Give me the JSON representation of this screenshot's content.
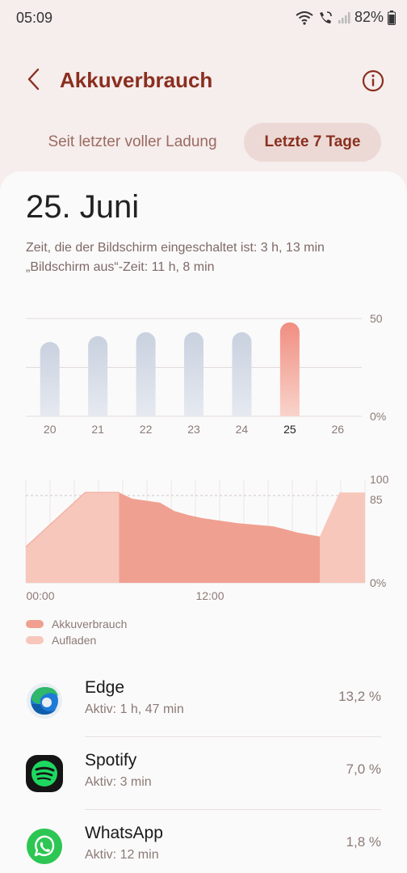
{
  "status_bar": {
    "time": "05:09",
    "battery_percent": "82%"
  },
  "header": {
    "title": "Akkuverbrauch"
  },
  "tabs": [
    {
      "label": "Seit letzter voller Ladung",
      "selected": false
    },
    {
      "label": "Letzte 7 Tage",
      "selected": true
    }
  ],
  "summary": {
    "date": "25. Juni",
    "screen_on": "Zeit, die der Bildschirm eingeschaltet ist: 3 h, 13 min",
    "screen_off": "„Bildschirm aus“-Zeit: 11 h, 8 min"
  },
  "chart_data": [
    {
      "type": "bar",
      "categories": [
        "20",
        "21",
        "22",
        "23",
        "24",
        "25",
        "26"
      ],
      "values": [
        38,
        41,
        43,
        43,
        43,
        48,
        0
      ],
      "selected_category": "25",
      "ylim": [
        0,
        50
      ],
      "y_ticks": [
        "50",
        "0%"
      ],
      "colors": {
        "default": "#c9d1df",
        "selected": "#f08e80"
      }
    },
    {
      "type": "area",
      "x_ticks": [
        "00:00",
        "12:00"
      ],
      "y_ticks": [
        "100",
        "85",
        "0%"
      ],
      "ylim": [
        0,
        100
      ],
      "reference_line": 85,
      "x_range_hours": [
        0,
        24
      ],
      "series": [
        {
          "name": "Aufladen",
          "color": "#f7c7bc",
          "points": [
            [
              0,
              35
            ],
            [
              4.2,
              88
            ],
            [
              6.6,
              88
            ],
            [
              6.6,
              0
            ],
            [
              0,
              0
            ]
          ]
        },
        {
          "name": "Akkuverbrauch",
          "color": "#f0a091",
          "points": [
            [
              6.6,
              88
            ],
            [
              7.5,
              82
            ],
            [
              9.5,
              78
            ],
            [
              10.5,
              70
            ],
            [
              11.5,
              66
            ],
            [
              12.5,
              63
            ],
            [
              15,
              58
            ],
            [
              17.5,
              55
            ],
            [
              18.4,
              52
            ],
            [
              19.2,
              49
            ],
            [
              20.8,
              45
            ],
            [
              20.8,
              0
            ],
            [
              6.6,
              0
            ]
          ]
        },
        {
          "name": "Aufladen",
          "color": "#f7c7bc",
          "points": [
            [
              20.8,
              45
            ],
            [
              22.2,
              88
            ],
            [
              24,
              88
            ],
            [
              24,
              0
            ],
            [
              20.8,
              0
            ]
          ]
        }
      ],
      "night_segment": [
        [
          0,
          35
        ],
        [
          4.2,
          88
        ],
        [
          6.6,
          88
        ]
      ]
    }
  ],
  "legend": [
    {
      "label": "Akkuverbrauch",
      "color": "#f0a091"
    },
    {
      "label": "Aufladen",
      "color": "#f7c7bc"
    }
  ],
  "apps": [
    {
      "name": "Edge",
      "active": "Aktiv: 1 h, 47 min",
      "percent": "13,2 %",
      "icon": "edge-icon"
    },
    {
      "name": "Spotify",
      "active": "Aktiv: 3 min",
      "percent": "7,0 %",
      "icon": "spotify-icon"
    },
    {
      "name": "WhatsApp",
      "active": "Aktiv: 12 min",
      "percent": "1,8 %",
      "icon": "whatsapp-icon"
    }
  ]
}
